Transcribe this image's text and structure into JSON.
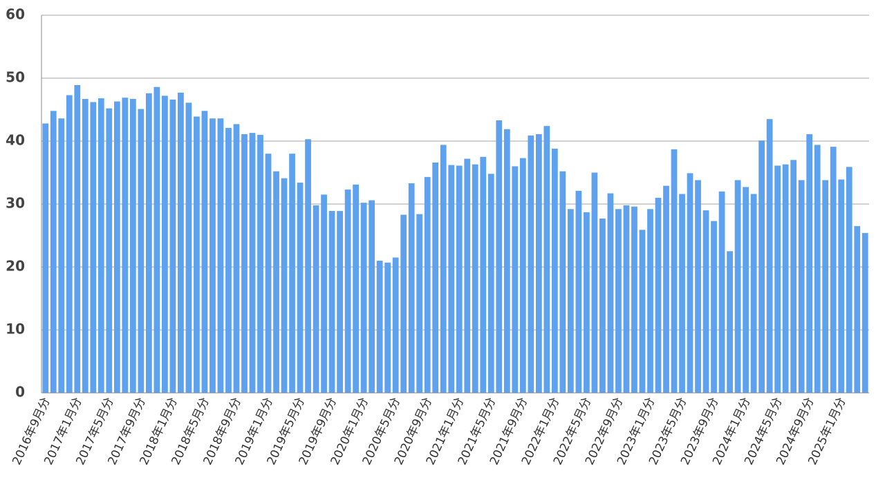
{
  "chart_data": {
    "type": "bar",
    "categories": [
      "2016年9月分",
      null,
      null,
      null,
      "2017年1月分",
      null,
      null,
      null,
      "2017年5月分",
      null,
      null,
      null,
      "2017年9月分",
      null,
      null,
      null,
      "2018年1月分",
      null,
      null,
      null,
      "2018年5月分",
      null,
      null,
      null,
      "2018年9月分",
      null,
      null,
      null,
      "2019年1月分",
      null,
      null,
      null,
      "2019年5月分",
      null,
      null,
      null,
      "2019年9月分",
      null,
      null,
      null,
      "2020年1月分",
      null,
      null,
      null,
      "2020年5月分",
      null,
      null,
      null,
      "2020年9月分",
      null,
      null,
      null,
      "2021年1月分",
      null,
      null,
      null,
      "2021年5月分",
      null,
      null,
      null,
      "2021年9月分",
      null,
      null,
      null,
      "2022年1月分",
      null,
      null,
      null,
      "2022年5月分",
      null,
      null,
      null,
      "2022年9月分",
      null,
      null,
      null,
      "2023年1月分",
      null,
      null,
      null,
      "2023年5月分",
      null,
      null,
      null,
      "2023年9月分",
      null,
      null,
      null,
      "2024年1月分",
      null,
      null,
      null,
      "2024年5月分",
      null,
      null,
      null,
      "2024年9月分",
      null,
      null,
      null,
      "2025年1月分",
      null,
      null,
      null
    ],
    "values": [
      42.8,
      44.8,
      43.6,
      47.3,
      48.9,
      46.7,
      46.2,
      46.8,
      45.2,
      46.3,
      46.9,
      46.7,
      45.1,
      47.6,
      48.6,
      47.2,
      46.6,
      47.7,
      46.1,
      43.9,
      44.8,
      43.6,
      43.6,
      42.1,
      42.7,
      41.1,
      41.3,
      41.0,
      38.0,
      35.2,
      34.1,
      38.0,
      33.4,
      40.3,
      29.8,
      31.5,
      28.9,
      28.9,
      32.3,
      33.1,
      30.2,
      30.6,
      21.0,
      20.7,
      21.5,
      28.3,
      33.3,
      28.4,
      34.3,
      36.6,
      39.4,
      36.2,
      36.1,
      37.2,
      36.3,
      37.5,
      34.8,
      43.3,
      41.9,
      36.0,
      37.3,
      40.9,
      41.1,
      42.4,
      38.8,
      35.2,
      29.2,
      32.1,
      28.7,
      35.0,
      27.7,
      31.7,
      29.2,
      29.8,
      29.6,
      25.9,
      29.2,
      31.0,
      32.9,
      38.7,
      31.6,
      34.9,
      33.8,
      29.0,
      27.3,
      32.0,
      22.5,
      33.8,
      32.7,
      31.6,
      40.1,
      43.5,
      36.1,
      36.3,
      37.0,
      33.8,
      41.1,
      39.4,
      33.8,
      39.1,
      33.9,
      35.9,
      26.5,
      25.4
    ],
    "color": "#5ea1ee",
    "ylim": [
      0,
      60
    ],
    "yticks": [
      0,
      10,
      20,
      30,
      40,
      50,
      60
    ],
    "grid": true
  }
}
